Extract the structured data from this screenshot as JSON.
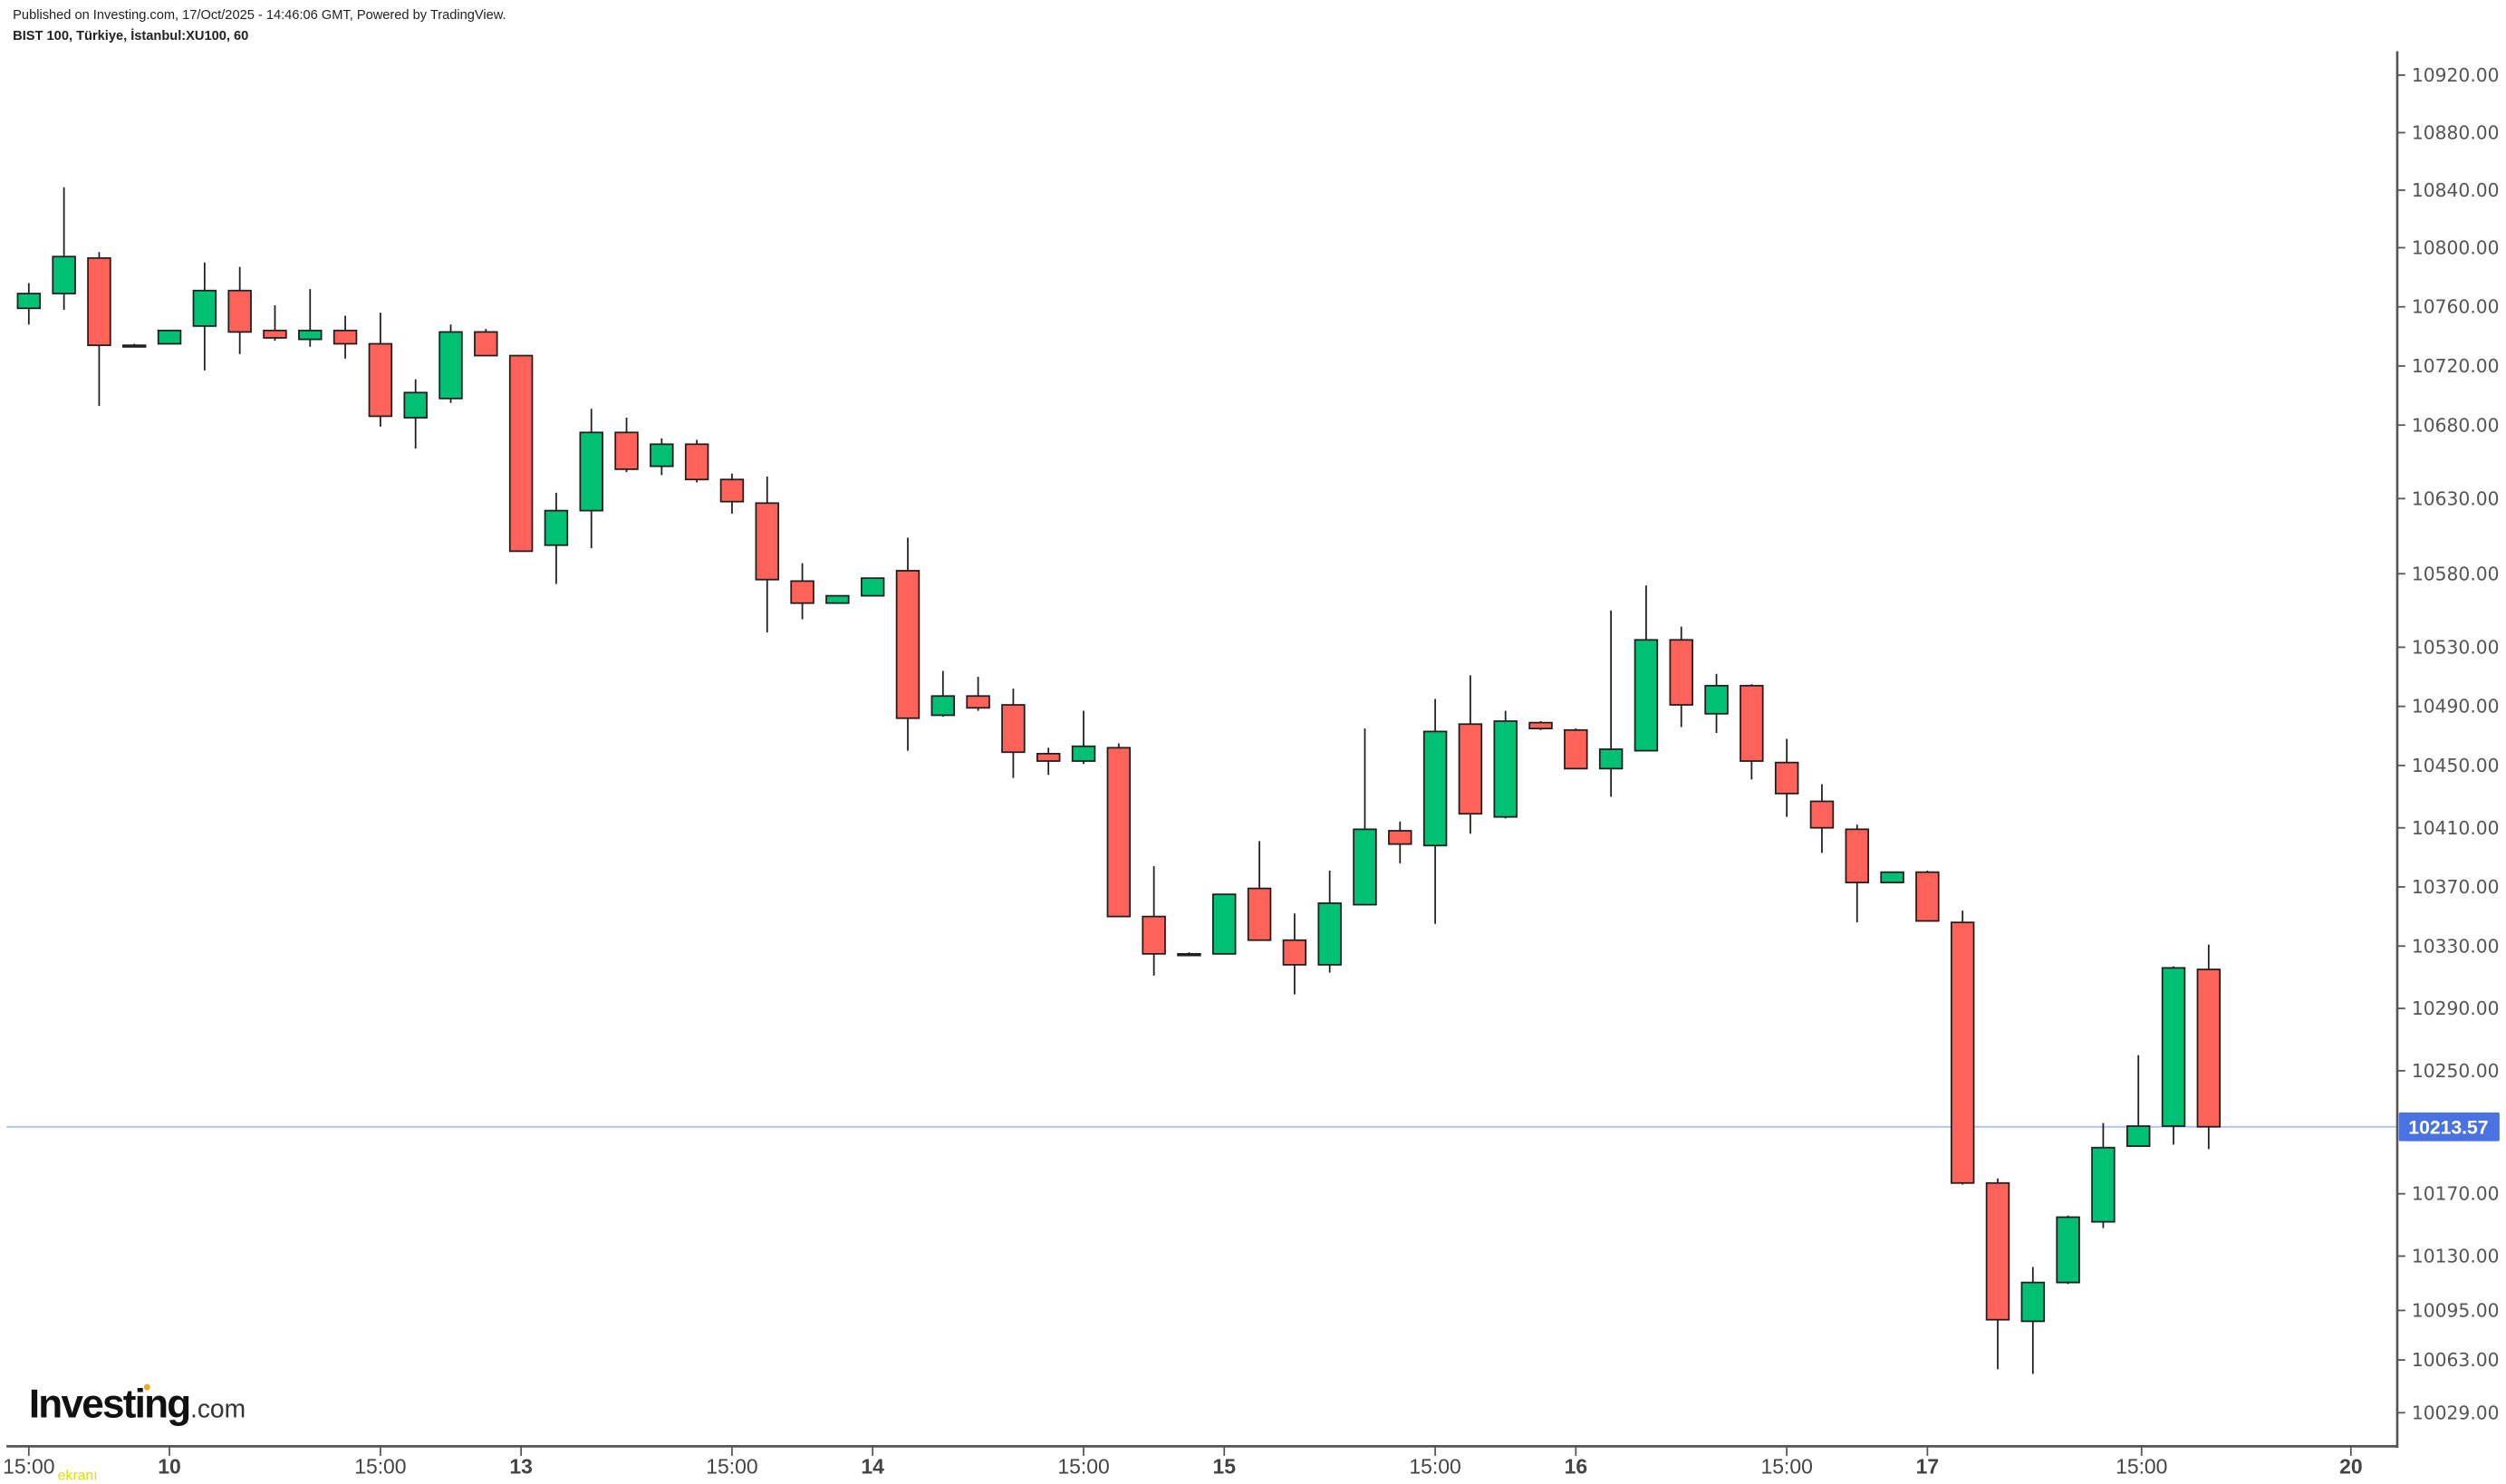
{
  "header": {
    "published": "Published on Investing.com, 17/Oct/2025 - 14:46:06 GMT, Powered by TradingView.",
    "symbol": "BIST 100, Türkiye, İstanbul:XU100, 60"
  },
  "logo": {
    "brand": "Investing",
    "suffix": ".com",
    "watermark": "ekranı"
  },
  "colors": {
    "up": "#00C073",
    "down": "#FF6259",
    "border": "#1f1f1f",
    "current": "#4A72E0",
    "current_line": "#A9BDF2",
    "axis": "#555555"
  },
  "chart_data": {
    "type": "candlestick",
    "title": "BIST 100, Türkiye, İstanbul:XU100, 60",
    "interval": "60",
    "current_price": "10213.57",
    "y_ticks": [
      "10920.00",
      "10880.00",
      "10840.00",
      "10800.00",
      "10760.00",
      "10720.00",
      "10680.00",
      "10630.00",
      "10580.00",
      "10530.00",
      "10490.00",
      "10450.00",
      "10410.00",
      "10370.00",
      "10330.00",
      "10290.00",
      "10250.00",
      "10170.00",
      "10130.00",
      "10095.00",
      "10063.00",
      "10029.00"
    ],
    "x_ticks": [
      "15:00",
      "10",
      "15:00",
      "13",
      "15:00",
      "14",
      "15:00",
      "15",
      "15:00",
      "16",
      "15:00",
      "17",
      "15:00",
      "20"
    ],
    "ohlc": [
      [
        10759,
        10776,
        10748,
        10769
      ],
      [
        10769,
        10842,
        10758,
        10794
      ],
      [
        10793,
        10797,
        10693,
        10734
      ],
      [
        10734,
        10735,
        10733,
        10734
      ],
      [
        10735,
        10744,
        10735,
        10744
      ],
      [
        10747,
        10790,
        10717,
        10771
      ],
      [
        10771,
        10787,
        10728,
        10743
      ],
      [
        10744,
        10761,
        10737,
        10739
      ],
      [
        10738,
        10772,
        10733,
        10744
      ],
      [
        10744,
        10754,
        10725,
        10735
      ],
      [
        10735,
        10756,
        10679,
        10686
      ],
      [
        10685,
        10711,
        10664,
        10702
      ],
      [
        10698,
        10748,
        10695,
        10743
      ],
      [
        10743,
        10745,
        10727,
        10727
      ],
      [
        10727,
        10727,
        10595,
        10595
      ],
      [
        10599,
        10634,
        10573,
        10622
      ],
      [
        10622,
        10691,
        10597,
        10675
      ],
      [
        10675,
        10685,
        10648,
        10650
      ],
      [
        10652,
        10671,
        10646,
        10667
      ],
      [
        10667,
        10670,
        10641,
        10643
      ],
      [
        10643,
        10647,
        10620,
        10628
      ],
      [
        10627,
        10645,
        10540,
        10576
      ],
      [
        10575,
        10587,
        10549,
        10560
      ],
      [
        10560,
        10565,
        10560,
        10565
      ],
      [
        10565,
        10577,
        10565,
        10577
      ],
      [
        10582,
        10604,
        10460,
        10482
      ],
      [
        10484,
        10514,
        10483,
        10497
      ],
      [
        10497,
        10510,
        10487,
        10489
      ],
      [
        10491,
        10502,
        10442,
        10459
      ],
      [
        10458,
        10462,
        10444,
        10453
      ],
      [
        10453,
        10487,
        10451,
        10463
      ],
      [
        10462,
        10465,
        10350,
        10350
      ],
      [
        10350,
        10384,
        10311,
        10325
      ],
      [
        10325,
        10326,
        10324,
        10325
      ],
      [
        10325,
        10365,
        10325,
        10365
      ],
      [
        10369,
        10401,
        10334,
        10334
      ],
      [
        10334,
        10352,
        10299,
        10318
      ],
      [
        10318,
        10381,
        10313,
        10359
      ],
      [
        10358,
        10475,
        10358,
        10409
      ],
      [
        10408,
        10414,
        10386,
        10399
      ],
      [
        10398,
        10495,
        10345,
        10473
      ],
      [
        10478,
        10511,
        10406,
        10419
      ],
      [
        10417,
        10487,
        10416,
        10480
      ],
      [
        10479,
        10480,
        10474,
        10475
      ],
      [
        10474,
        10475,
        10448,
        10448
      ],
      [
        10448,
        10555,
        10430,
        10461
      ],
      [
        10460,
        10572,
        10460,
        10535
      ],
      [
        10535,
        10544,
        10476,
        10491
      ],
      [
        10485,
        10512,
        10472,
        10504
      ],
      [
        10504,
        10505,
        10441,
        10453
      ],
      [
        10452,
        10468,
        10417,
        10432
      ],
      [
        10427,
        10438,
        10393,
        10410
      ],
      [
        10409,
        10412,
        10346,
        10373
      ],
      [
        10373,
        10380,
        10373,
        10380
      ],
      [
        10380,
        10381,
        10347,
        10347
      ],
      [
        10346,
        10354,
        10176,
        10177
      ],
      [
        10177,
        10180,
        10057,
        10089
      ],
      [
        10088,
        10123,
        10054,
        10113
      ],
      [
        10113,
        10156,
        10112,
        10155
      ],
      [
        10152,
        10216,
        10148,
        10200
      ],
      [
        10201,
        10260,
        10201,
        10214
      ],
      [
        10214,
        10317,
        10202,
        10316
      ],
      [
        10315,
        10331,
        10199,
        10213.57
      ]
    ]
  }
}
